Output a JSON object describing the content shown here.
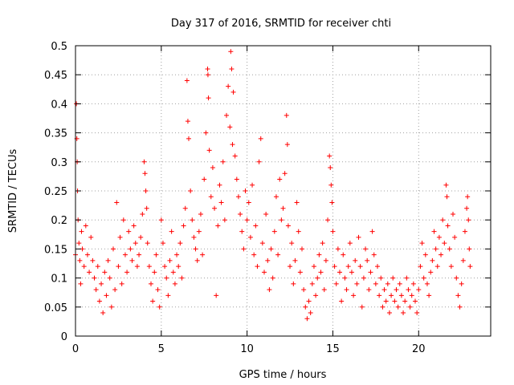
{
  "chart_data": {
    "type": "scatter",
    "title": "Day 317 of 2016, SRMTID for receiver chti",
    "xlabel": "GPS time / hours",
    "ylabel": "SRMTID / TECUs",
    "xlim": [
      0,
      24.2
    ],
    "ylim": [
      0,
      0.5
    ],
    "xticks": [
      0,
      5,
      10,
      15,
      20
    ],
    "xtick_labels": [
      "0",
      "5",
      "10",
      "15",
      "20"
    ],
    "yticks": [
      0,
      0.05,
      0.1,
      0.15,
      0.2,
      0.25,
      0.3,
      0.35,
      0.4,
      0.45,
      0.5
    ],
    "ytick_labels": [
      "0",
      "0.05",
      "0.1",
      "0.15",
      "0.2",
      "0.25",
      "0.3",
      "0.35",
      "0.4",
      "0.45",
      "0.5"
    ],
    "grid": true,
    "marker": "+",
    "color": "#ff0000",
    "series": [
      {
        "name": "SRMTID",
        "points": [
          [
            0.0,
            0.14
          ],
          [
            0.05,
            0.4
          ],
          [
            0.08,
            0.34
          ],
          [
            0.1,
            0.3
          ],
          [
            0.12,
            0.25
          ],
          [
            0.15,
            0.2
          ],
          [
            0.2,
            0.16
          ],
          [
            0.25,
            0.13
          ],
          [
            0.3,
            0.09
          ],
          [
            0.35,
            0.18
          ],
          [
            0.4,
            0.15
          ],
          [
            0.5,
            0.12
          ],
          [
            0.6,
            0.19
          ],
          [
            0.7,
            0.14
          ],
          [
            0.8,
            0.11
          ],
          [
            0.9,
            0.17
          ],
          [
            1.0,
            0.13
          ],
          [
            1.1,
            0.1
          ],
          [
            1.2,
            0.08
          ],
          [
            1.3,
            0.12
          ],
          [
            1.4,
            0.06
          ],
          [
            1.5,
            0.09
          ],
          [
            1.6,
            0.04
          ],
          [
            1.7,
            0.11
          ],
          [
            1.8,
            0.07
          ],
          [
            1.9,
            0.13
          ],
          [
            2.0,
            0.1
          ],
          [
            2.1,
            0.05
          ],
          [
            2.2,
            0.15
          ],
          [
            2.3,
            0.08
          ],
          [
            2.4,
            0.23
          ],
          [
            2.5,
            0.12
          ],
          [
            2.6,
            0.17
          ],
          [
            2.7,
            0.09
          ],
          [
            2.8,
            0.2
          ],
          [
            2.9,
            0.14
          ],
          [
            3.0,
            0.11
          ],
          [
            3.1,
            0.18
          ],
          [
            3.2,
            0.15
          ],
          [
            3.3,
            0.13
          ],
          [
            3.4,
            0.19
          ],
          [
            3.5,
            0.16
          ],
          [
            3.6,
            0.12
          ],
          [
            3.7,
            0.14
          ],
          [
            3.8,
            0.17
          ],
          [
            3.9,
            0.21
          ],
          [
            4.0,
            0.3
          ],
          [
            4.05,
            0.28
          ],
          [
            4.1,
            0.25
          ],
          [
            4.15,
            0.22
          ],
          [
            4.2,
            0.16
          ],
          [
            4.3,
            0.12
          ],
          [
            4.4,
            0.09
          ],
          [
            4.5,
            0.06
          ],
          [
            4.6,
            0.11
          ],
          [
            4.7,
            0.14
          ],
          [
            4.8,
            0.08
          ],
          [
            4.9,
            0.05
          ],
          [
            5.0,
            0.2
          ],
          [
            5.1,
            0.16
          ],
          [
            5.2,
            0.12
          ],
          [
            5.3,
            0.1
          ],
          [
            5.4,
            0.07
          ],
          [
            5.5,
            0.13
          ],
          [
            5.6,
            0.18
          ],
          [
            5.7,
            0.11
          ],
          [
            5.8,
            0.09
          ],
          [
            5.9,
            0.14
          ],
          [
            6.0,
            0.12
          ],
          [
            6.1,
            0.16
          ],
          [
            6.2,
            0.1
          ],
          [
            6.3,
            0.19
          ],
          [
            6.4,
            0.22
          ],
          [
            6.5,
            0.44
          ],
          [
            6.55,
            0.37
          ],
          [
            6.6,
            0.34
          ],
          [
            6.7,
            0.25
          ],
          [
            6.8,
            0.2
          ],
          [
            6.9,
            0.17
          ],
          [
            7.0,
            0.15
          ],
          [
            7.1,
            0.13
          ],
          [
            7.2,
            0.18
          ],
          [
            7.3,
            0.21
          ],
          [
            7.4,
            0.14
          ],
          [
            7.5,
            0.27
          ],
          [
            7.6,
            0.35
          ],
          [
            7.7,
            0.46
          ],
          [
            7.72,
            0.45
          ],
          [
            7.75,
            0.41
          ],
          [
            7.8,
            0.32
          ],
          [
            7.9,
            0.24
          ],
          [
            8.0,
            0.29
          ],
          [
            8.1,
            0.22
          ],
          [
            8.2,
            0.07
          ],
          [
            8.3,
            0.19
          ],
          [
            8.4,
            0.26
          ],
          [
            8.5,
            0.23
          ],
          [
            8.6,
            0.3
          ],
          [
            8.7,
            0.2
          ],
          [
            8.8,
            0.38
          ],
          [
            8.9,
            0.43
          ],
          [
            9.0,
            0.36
          ],
          [
            9.05,
            0.49
          ],
          [
            9.1,
            0.46
          ],
          [
            9.15,
            0.33
          ],
          [
            9.2,
            0.42
          ],
          [
            9.3,
            0.31
          ],
          [
            9.4,
            0.27
          ],
          [
            9.5,
            0.24
          ],
          [
            9.6,
            0.21
          ],
          [
            9.7,
            0.18
          ],
          [
            9.8,
            0.15
          ],
          [
            9.9,
            0.25
          ],
          [
            10.0,
            0.2
          ],
          [
            10.1,
            0.23
          ],
          [
            10.2,
            0.17
          ],
          [
            10.3,
            0.26
          ],
          [
            10.4,
            0.14
          ],
          [
            10.5,
            0.19
          ],
          [
            10.6,
            0.12
          ],
          [
            10.7,
            0.3
          ],
          [
            10.8,
            0.34
          ],
          [
            10.9,
            0.16
          ],
          [
            11.0,
            0.11
          ],
          [
            11.1,
            0.21
          ],
          [
            11.2,
            0.13
          ],
          [
            11.3,
            0.08
          ],
          [
            11.4,
            0.15
          ],
          [
            11.5,
            0.1
          ],
          [
            11.6,
            0.18
          ],
          [
            11.7,
            0.24
          ],
          [
            11.8,
            0.14
          ],
          [
            11.9,
            0.27
          ],
          [
            12.0,
            0.2
          ],
          [
            12.1,
            0.22
          ],
          [
            12.2,
            0.28
          ],
          [
            12.3,
            0.38
          ],
          [
            12.35,
            0.33
          ],
          [
            12.4,
            0.19
          ],
          [
            12.5,
            0.12
          ],
          [
            12.6,
            0.16
          ],
          [
            12.7,
            0.09
          ],
          [
            12.8,
            0.13
          ],
          [
            12.9,
            0.23
          ],
          [
            13.0,
            0.18
          ],
          [
            13.1,
            0.11
          ],
          [
            13.2,
            0.15
          ],
          [
            13.3,
            0.08
          ],
          [
            13.4,
            0.05
          ],
          [
            13.5,
            0.03
          ],
          [
            13.6,
            0.06
          ],
          [
            13.7,
            0.04
          ],
          [
            13.8,
            0.09
          ],
          [
            13.9,
            0.12
          ],
          [
            14.0,
            0.07
          ],
          [
            14.1,
            0.1
          ],
          [
            14.2,
            0.14
          ],
          [
            14.3,
            0.11
          ],
          [
            14.4,
            0.16
          ],
          [
            14.5,
            0.08
          ],
          [
            14.6,
            0.13
          ],
          [
            14.7,
            0.2
          ],
          [
            14.8,
            0.31
          ],
          [
            14.85,
            0.29
          ],
          [
            14.9,
            0.26
          ],
          [
            14.95,
            0.23
          ],
          [
            15.0,
            0.18
          ],
          [
            15.1,
            0.12
          ],
          [
            15.2,
            0.09
          ],
          [
            15.3,
            0.15
          ],
          [
            15.4,
            0.11
          ],
          [
            15.5,
            0.06
          ],
          [
            15.6,
            0.14
          ],
          [
            15.7,
            0.1
          ],
          [
            15.8,
            0.08
          ],
          [
            15.9,
            0.12
          ],
          [
            16.0,
            0.16
          ],
          [
            16.1,
            0.11
          ],
          [
            16.2,
            0.07
          ],
          [
            16.3,
            0.13
          ],
          [
            16.4,
            0.09
          ],
          [
            16.5,
            0.17
          ],
          [
            16.6,
            0.12
          ],
          [
            16.7,
            0.05
          ],
          [
            16.8,
            0.1
          ],
          [
            16.9,
            0.15
          ],
          [
            17.0,
            0.13
          ],
          [
            17.1,
            0.08
          ],
          [
            17.2,
            0.11
          ],
          [
            17.3,
            0.18
          ],
          [
            17.4,
            0.14
          ],
          [
            17.5,
            0.09
          ],
          [
            17.6,
            0.12
          ],
          [
            17.7,
            0.07
          ],
          [
            17.8,
            0.1
          ],
          [
            17.9,
            0.05
          ],
          [
            18.0,
            0.08
          ],
          [
            18.1,
            0.06
          ],
          [
            18.2,
            0.09
          ],
          [
            18.3,
            0.04
          ],
          [
            18.4,
            0.07
          ],
          [
            18.5,
            0.1
          ],
          [
            18.6,
            0.06
          ],
          [
            18.7,
            0.08
          ],
          [
            18.8,
            0.05
          ],
          [
            18.9,
            0.09
          ],
          [
            19.0,
            0.07
          ],
          [
            19.1,
            0.04
          ],
          [
            19.2,
            0.06
          ],
          [
            19.3,
            0.1
          ],
          [
            19.4,
            0.08
          ],
          [
            19.5,
            0.05
          ],
          [
            19.6,
            0.07
          ],
          [
            19.7,
            0.09
          ],
          [
            19.8,
            0.06
          ],
          [
            19.9,
            0.04
          ],
          [
            20.0,
            0.08
          ],
          [
            20.1,
            0.12
          ],
          [
            20.2,
            0.16
          ],
          [
            20.3,
            0.1
          ],
          [
            20.4,
            0.14
          ],
          [
            20.5,
            0.09
          ],
          [
            20.6,
            0.07
          ],
          [
            20.7,
            0.11
          ],
          [
            20.8,
            0.13
          ],
          [
            20.9,
            0.18
          ],
          [
            21.0,
            0.15
          ],
          [
            21.1,
            0.12
          ],
          [
            21.2,
            0.17
          ],
          [
            21.3,
            0.14
          ],
          [
            21.4,
            0.2
          ],
          [
            21.5,
            0.16
          ],
          [
            21.6,
            0.26
          ],
          [
            21.65,
            0.24
          ],
          [
            21.7,
            0.19
          ],
          [
            21.8,
            0.15
          ],
          [
            21.9,
            0.12
          ],
          [
            22.0,
            0.21
          ],
          [
            22.1,
            0.17
          ],
          [
            22.2,
            0.1
          ],
          [
            22.3,
            0.07
          ],
          [
            22.4,
            0.05
          ],
          [
            22.5,
            0.09
          ],
          [
            22.6,
            0.13
          ],
          [
            22.7,
            0.18
          ],
          [
            22.8,
            0.22
          ],
          [
            22.85,
            0.24
          ],
          [
            22.9,
            0.2
          ],
          [
            22.95,
            0.15
          ],
          [
            23.0,
            0.12
          ]
        ]
      }
    ]
  }
}
